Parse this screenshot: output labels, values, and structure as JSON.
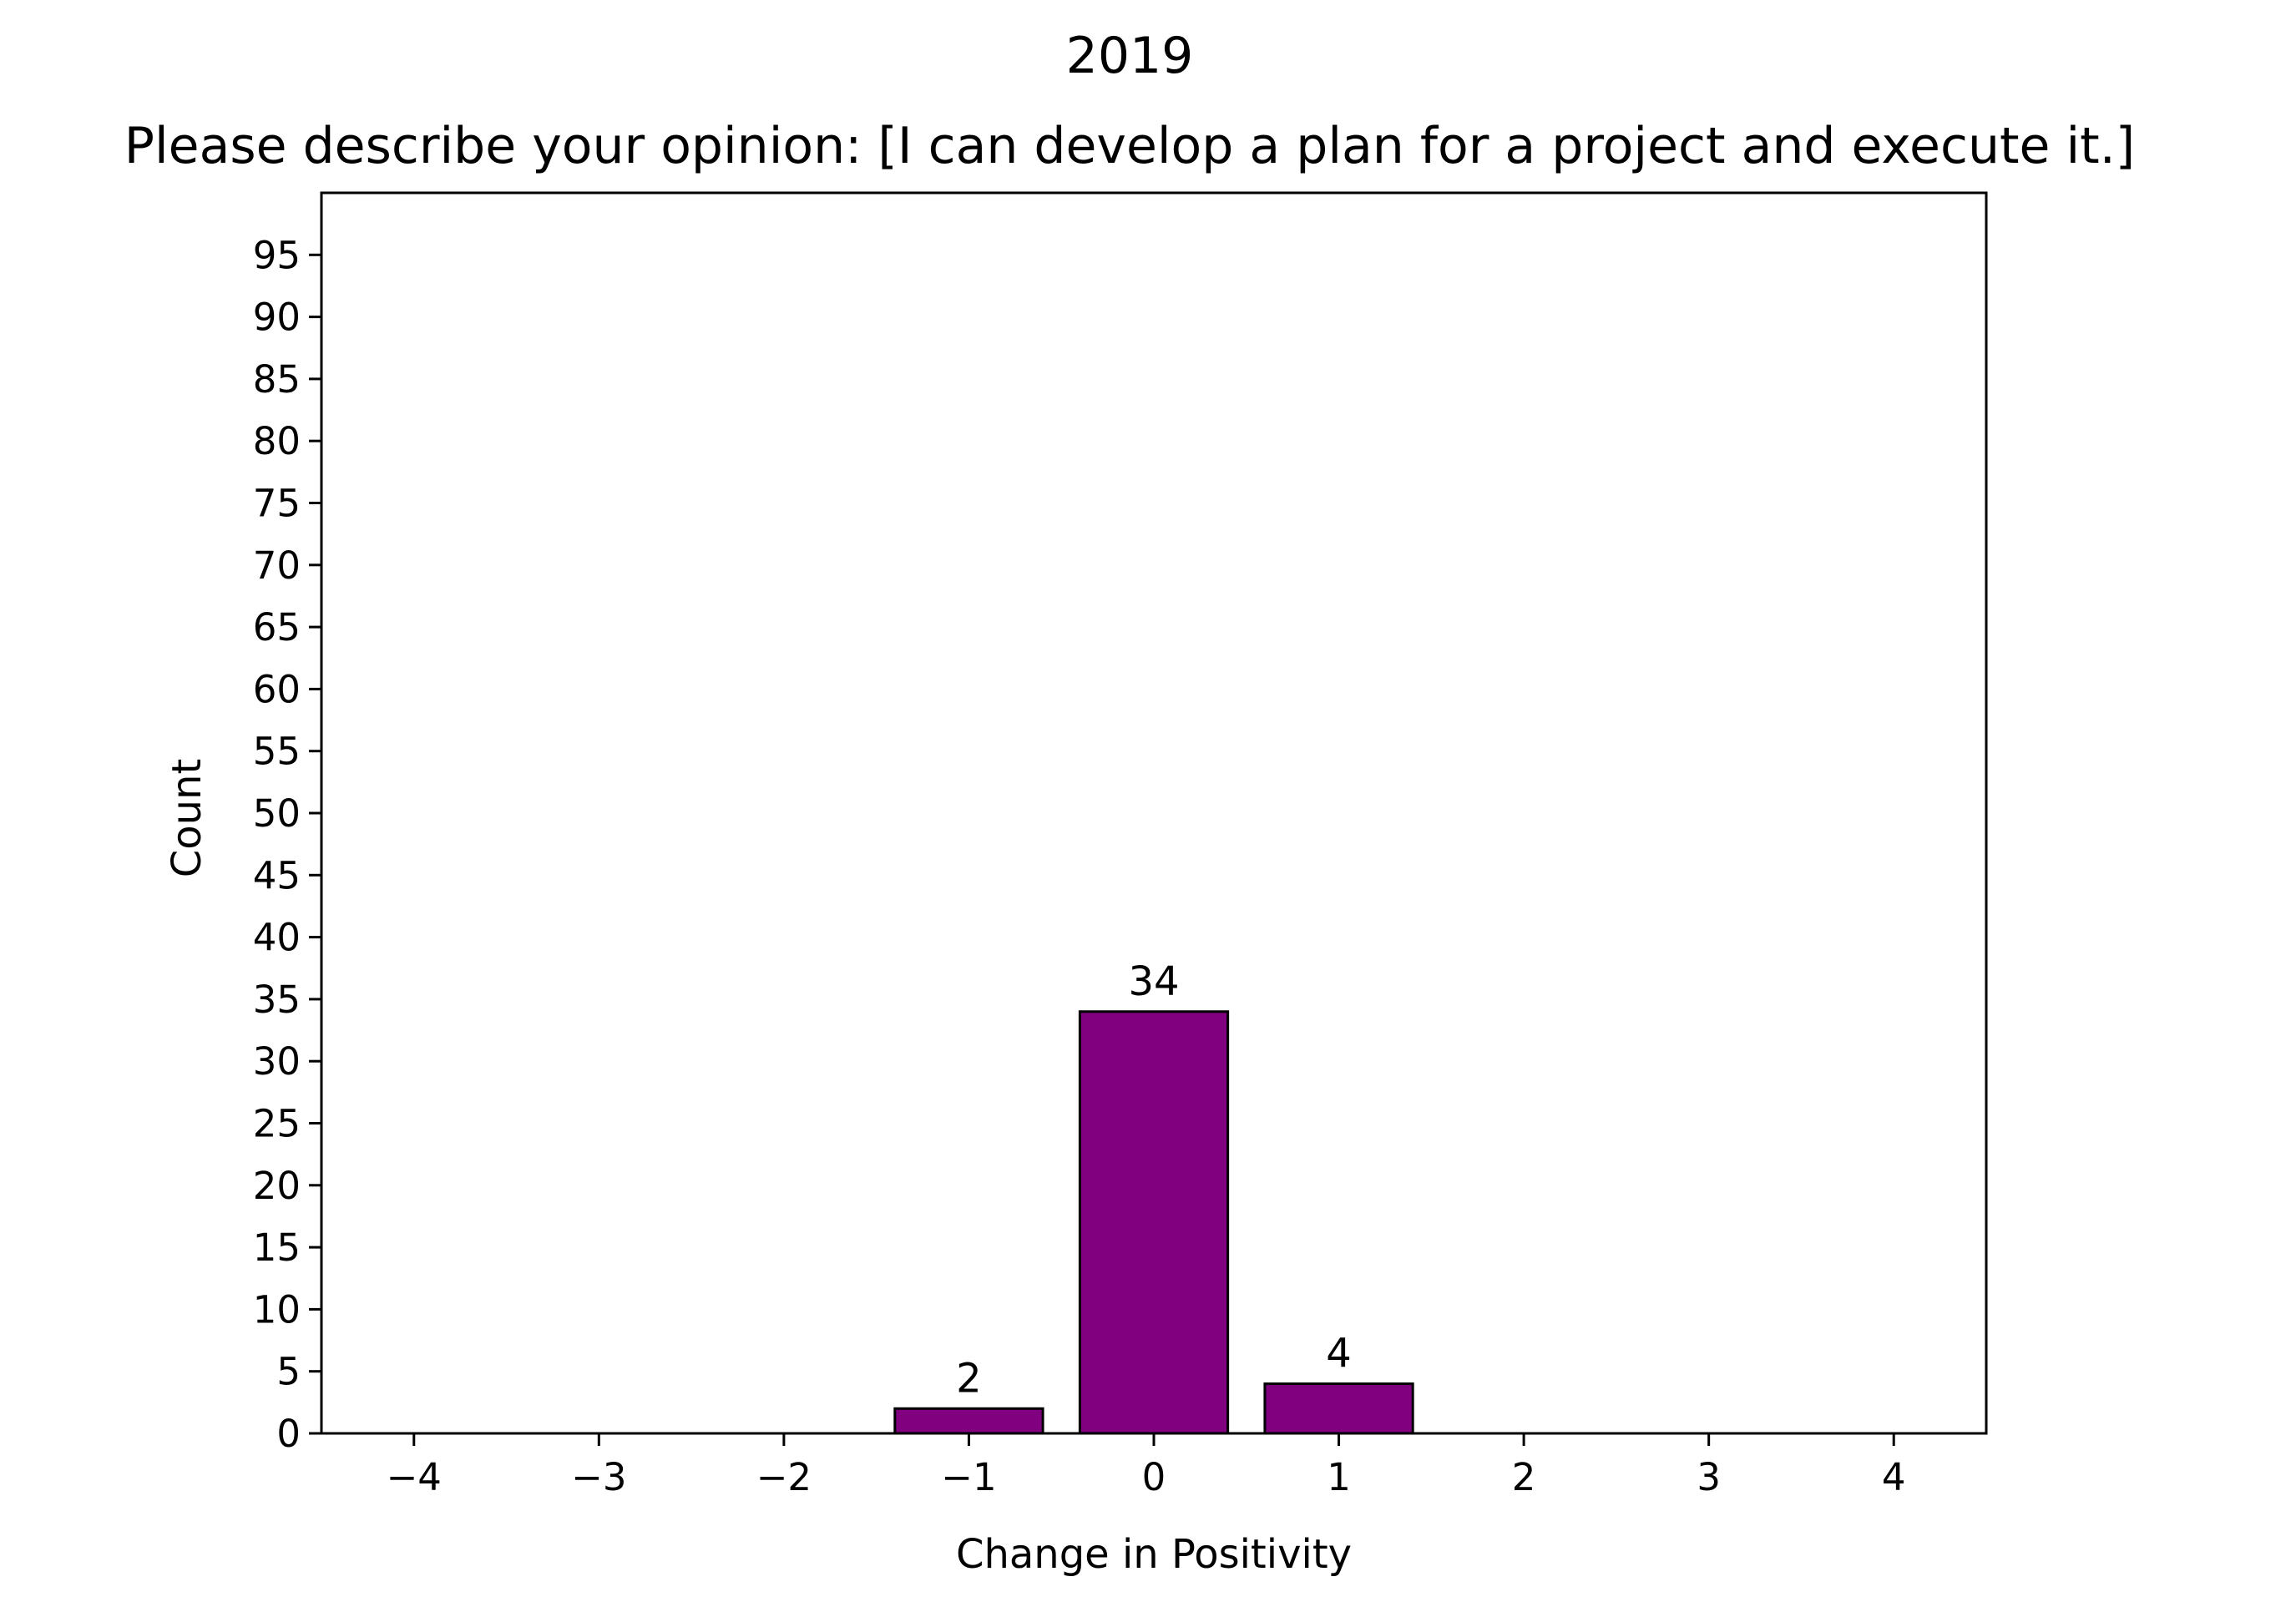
{
  "chart_data": {
    "type": "bar",
    "suptitle": "2019",
    "title": "Please describe your opinion: [I can develop a plan for a project and execute it.]",
    "xlabel": "Change in Positivity",
    "ylabel": "Count",
    "x": [
      -1,
      0,
      1
    ],
    "values": [
      2,
      34,
      4
    ],
    "data_labels": [
      "2",
      "34",
      "4"
    ],
    "xlim": [
      -4.5,
      4.5
    ],
    "ylim": [
      0,
      100
    ],
    "xticks": [
      -4,
      -3,
      -2,
      -1,
      0,
      1,
      2,
      3,
      4
    ],
    "xtick_labels": [
      "−4",
      "−3",
      "−2",
      "−1",
      "0",
      "1",
      "2",
      "3",
      "4"
    ],
    "yticks": [
      0,
      5,
      10,
      15,
      20,
      25,
      30,
      35,
      40,
      45,
      50,
      55,
      60,
      65,
      70,
      75,
      80,
      85,
      90,
      95
    ],
    "ytick_labels": [
      "0",
      "5",
      "10",
      "15",
      "20",
      "25",
      "30",
      "35",
      "40",
      "45",
      "50",
      "55",
      "60",
      "65",
      "70",
      "75",
      "80",
      "85",
      "90",
      "95"
    ],
    "bar_color": "#800080",
    "edge_color": "#000000",
    "grid": false,
    "legend": "none"
  }
}
